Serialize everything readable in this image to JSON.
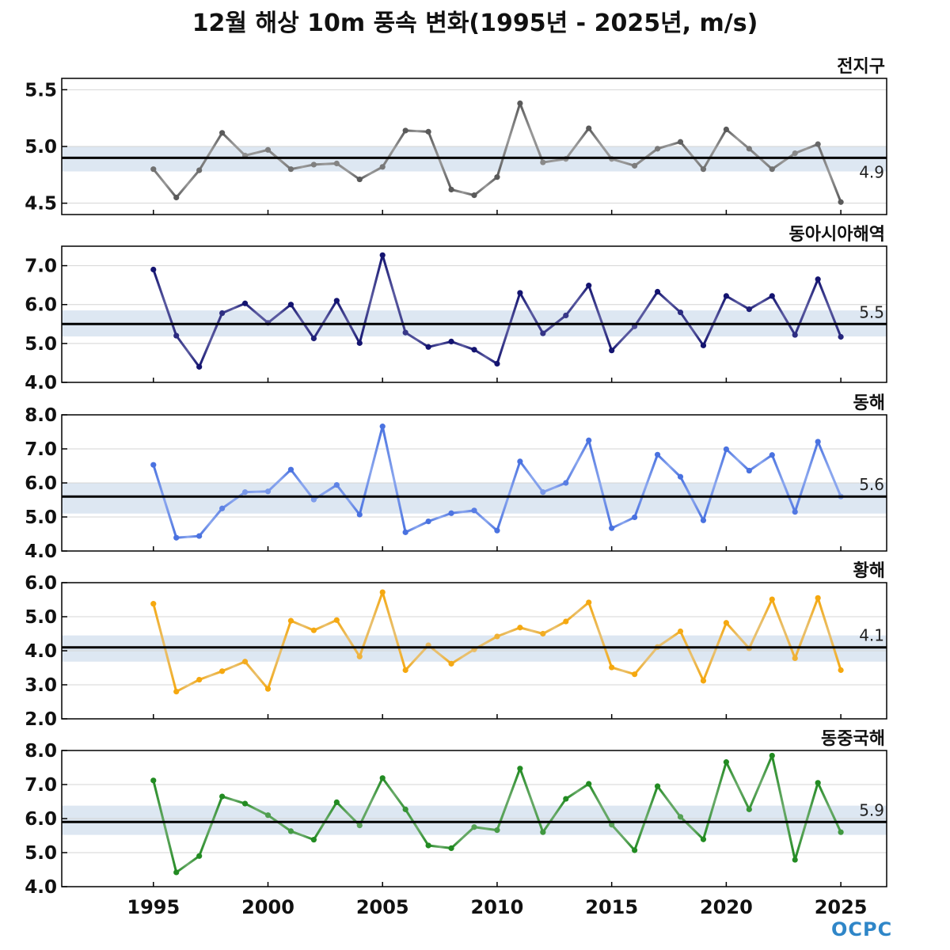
{
  "title": "12월 해상 10m 풍속 변화(1995년 - 2025년, m/s)",
  "logo_text": "OCPC",
  "chart_data": {
    "type": "line",
    "x_range": [
      1991,
      2027
    ],
    "x_ticks": [
      1995,
      2000,
      2005,
      2010,
      2015,
      2020,
      2025
    ],
    "years": [
      1995,
      1996,
      1997,
      1998,
      1999,
      2000,
      2001,
      2002,
      2003,
      2004,
      2005,
      2006,
      2007,
      2008,
      2009,
      2010,
      2011,
      2012,
      2013,
      2014,
      2015,
      2016,
      2017,
      2018,
      2019,
      2020,
      2021,
      2022,
      2023,
      2024,
      2025
    ],
    "panels": [
      {
        "name": "전지구",
        "color": "#5a5a5a",
        "color_light": "#999999",
        "ylim": [
          4.4,
          5.6
        ],
        "yticks": [
          4.5,
          5.0,
          5.5
        ],
        "tick_labels": [
          "4.5",
          "5.0",
          "5.5"
        ],
        "mean": 4.9,
        "mean_label": "4.9",
        "band": [
          4.78,
          5.0
        ],
        "values": [
          4.8,
          4.55,
          4.79,
          5.12,
          4.92,
          4.97,
          4.8,
          4.84,
          4.85,
          4.71,
          4.82,
          5.14,
          5.13,
          4.62,
          4.57,
          4.73,
          5.38,
          4.86,
          4.89,
          5.16,
          4.89,
          4.83,
          4.98,
          5.04,
          4.8,
          5.15,
          4.98,
          4.8,
          4.94,
          5.02,
          4.51
        ]
      },
      {
        "name": "동아시아해역",
        "color": "#141470",
        "color_light": "#5a5aa0",
        "ylim": [
          4.0,
          7.5
        ],
        "yticks": [
          4.0,
          5.0,
          6.0,
          7.0
        ],
        "tick_labels": [
          "4.0",
          "5.0",
          "6.0",
          "7.0"
        ],
        "mean": 5.5,
        "mean_label": "5.5",
        "band": [
          5.18,
          5.85
        ],
        "values": [
          6.9,
          5.2,
          4.4,
          5.78,
          6.03,
          5.53,
          6.0,
          5.13,
          6.1,
          5.01,
          7.27,
          5.28,
          4.91,
          5.05,
          4.84,
          4.48,
          6.3,
          5.26,
          5.72,
          6.49,
          4.82,
          5.44,
          6.33,
          5.8,
          4.95,
          6.22,
          5.88,
          6.22,
          5.22,
          6.65,
          5.17
        ]
      },
      {
        "name": "동해",
        "color": "#4a72e0",
        "color_light": "#8aa6ee",
        "ylim": [
          4.0,
          8.0
        ],
        "yticks": [
          4.0,
          5.0,
          6.0,
          7.0,
          8.0
        ],
        "tick_labels": [
          "4.0",
          "5.0",
          "6.0",
          "7.0",
          "8.0"
        ],
        "mean": 5.6,
        "mean_label": "5.6",
        "band": [
          5.1,
          6.0
        ],
        "values": [
          6.53,
          4.39,
          4.44,
          5.25,
          5.73,
          5.75,
          6.39,
          5.51,
          5.94,
          5.07,
          7.66,
          4.55,
          4.87,
          5.11,
          5.19,
          4.6,
          6.63,
          5.73,
          6.0,
          7.25,
          4.67,
          4.99,
          6.83,
          6.18,
          4.9,
          6.99,
          6.36,
          6.82,
          5.15,
          7.21,
          5.6
        ]
      },
      {
        "name": "황해",
        "color": "#f5a80f",
        "color_light": "#e8c070",
        "ylim": [
          2.0,
          6.0
        ],
        "yticks": [
          2.0,
          3.0,
          4.0,
          5.0,
          6.0
        ],
        "tick_labels": [
          "2.0",
          "3.0",
          "4.0",
          "5.0",
          "6.0"
        ],
        "mean": 4.1,
        "mean_label": "4.1",
        "band": [
          3.68,
          4.45
        ],
        "values": [
          5.38,
          2.8,
          3.15,
          3.4,
          3.68,
          2.88,
          4.88,
          4.6,
          4.9,
          3.83,
          5.72,
          3.43,
          4.16,
          3.62,
          4.04,
          4.42,
          4.68,
          4.5,
          4.86,
          5.42,
          3.51,
          3.31,
          4.11,
          4.57,
          3.12,
          4.82,
          4.07,
          5.51,
          3.78,
          5.55,
          3.43
        ]
      },
      {
        "name": "동중국해",
        "color": "#228b22",
        "color_light": "#6aaa6a",
        "ylim": [
          4.0,
          8.0
        ],
        "yticks": [
          4.0,
          5.0,
          6.0,
          7.0,
          8.0
        ],
        "tick_labels": [
          "4.0",
          "5.0",
          "6.0",
          "7.0",
          "8.0"
        ],
        "mean": 5.9,
        "mean_label": "5.9",
        "band": [
          5.52,
          6.38
        ],
        "values": [
          7.12,
          4.42,
          4.9,
          6.65,
          6.44,
          6.1,
          5.63,
          5.38,
          6.48,
          5.8,
          7.19,
          6.27,
          5.21,
          5.13,
          5.75,
          5.66,
          7.47,
          5.6,
          6.58,
          7.02,
          5.82,
          5.07,
          6.95,
          6.05,
          5.39,
          7.66,
          6.27,
          7.85,
          4.79,
          7.05,
          5.6
        ]
      }
    ]
  }
}
